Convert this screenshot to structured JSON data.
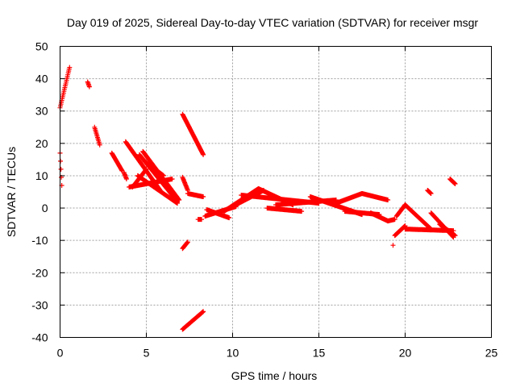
{
  "chart_data": {
    "type": "scatter",
    "title": "Day 019 of 2025, Sidereal Day-to-day VTEC variation (SDTVAR) for receiver msgr",
    "xlabel": "GPS time / hours",
    "ylabel": "SDTVAR / TECUs",
    "xlim": [
      0,
      25
    ],
    "ylim": [
      -40,
      50
    ],
    "xticks": [
      "0",
      "5",
      "10",
      "15",
      "20",
      "25"
    ],
    "yticks": [
      "-40",
      "-30",
      "-20",
      "-10",
      "0",
      "10",
      "20",
      "30",
      "40",
      "50"
    ],
    "grid": true,
    "marker": "+",
    "color": "#ff0000",
    "segments": [
      {
        "x0": 0.0,
        "x1": 0.55,
        "y0": 31,
        "y1": 43.5
      },
      {
        "x0": 0.0,
        "x1": 0.1,
        "y0": 17,
        "y1": 7
      },
      {
        "x0": 1.6,
        "x1": 1.7,
        "y0": 39,
        "y1": 37.5
      },
      {
        "x0": 2.0,
        "x1": 2.3,
        "y0": 25,
        "y1": 19.5
      },
      {
        "x0": 3.0,
        "x1": 3.6,
        "y0": 17,
        "y1": 11.5
      },
      {
        "x0": 3.7,
        "x1": 3.85,
        "y0": 11,
        "y1": 9
      },
      {
        "x0": 3.8,
        "x1": 5.8,
        "y0": 20.5,
        "y1": 5.5
      },
      {
        "x0": 4.0,
        "x1": 6.5,
        "y0": 6.5,
        "y1": 9
      },
      {
        "x0": 4.2,
        "x1": 5.0,
        "y0": 6.5,
        "y1": 12
      },
      {
        "x0": 4.5,
        "x1": 6.8,
        "y0": 10,
        "y1": 1.5
      },
      {
        "x0": 4.6,
        "x1": 6.8,
        "y0": 16.5,
        "y1": 2
      },
      {
        "x0": 4.8,
        "x1": 6.9,
        "y0": 17.5,
        "y1": 2.5
      },
      {
        "x0": 5.0,
        "x1": 6.0,
        "y0": 14,
        "y1": 10
      },
      {
        "x0": 7.1,
        "x1": 8.3,
        "y0": 29,
        "y1": 16.5
      },
      {
        "x0": 7.1,
        "x1": 7.4,
        "y0": 9.5,
        "y1": 5.5
      },
      {
        "x0": 7.4,
        "x1": 8.3,
        "y0": 4.5,
        "y1": 3.5
      },
      {
        "x0": 7.1,
        "x1": 7.4,
        "y0": -12.5,
        "y1": -10.5
      },
      {
        "x0": 7.1,
        "x1": 8.3,
        "y0": -37.5,
        "y1": -32
      },
      {
        "x0": 8.0,
        "x1": 8.2,
        "y0": -3.5,
        "y1": -3.5
      },
      {
        "x0": 8.4,
        "x1": 10.2,
        "y0": -2.5,
        "y1": 0.5
      },
      {
        "x0": 8.5,
        "x1": 9.8,
        "y0": -0.5,
        "y1": -3
      },
      {
        "x0": 9.5,
        "x1": 11.5,
        "y0": -1,
        "y1": 6
      },
      {
        "x0": 10.0,
        "x1": 11.8,
        "y0": 0.5,
        "y1": 5.5
      },
      {
        "x0": 10.5,
        "x1": 15.0,
        "y0": 4,
        "y1": 1.5
      },
      {
        "x0": 11.5,
        "x1": 13.5,
        "y0": 6,
        "y1": 1
      },
      {
        "x0": 12.0,
        "x1": 14.0,
        "y0": 0,
        "y1": -1
      },
      {
        "x0": 12.5,
        "x1": 16.0,
        "y0": 1,
        "y1": 2.5
      },
      {
        "x0": 14.5,
        "x1": 17.5,
        "y0": 3.5,
        "y1": -2
      },
      {
        "x0": 16.0,
        "x1": 17.5,
        "y0": 1.5,
        "y1": 4.5
      },
      {
        "x0": 17.5,
        "x1": 19.0,
        "y0": 4.5,
        "y1": 2.5
      },
      {
        "x0": 16.5,
        "x1": 18.5,
        "y0": -1,
        "y1": -2
      },
      {
        "x0": 18.0,
        "x1": 19.0,
        "y0": -1.5,
        "y1": -4
      },
      {
        "x0": 19.0,
        "x1": 19.4,
        "y0": -4,
        "y1": -3.5
      },
      {
        "x0": 19.3,
        "x1": 19.3,
        "y0": -11.5,
        "y1": -11.5
      },
      {
        "x0": 19.4,
        "x1": 20.0,
        "y0": -8.5,
        "y1": -5.5
      },
      {
        "x0": 19.5,
        "x1": 20.0,
        "y0": -2.5,
        "y1": 1
      },
      {
        "x0": 20.0,
        "x1": 21.5,
        "y0": 1,
        "y1": -6.5
      },
      {
        "x0": 20.0,
        "x1": 22.8,
        "y0": -6.5,
        "y1": -7
      },
      {
        "x0": 21.3,
        "x1": 21.5,
        "y0": 5.5,
        "y1": 4.5
      },
      {
        "x0": 21.5,
        "x1": 22.8,
        "y0": -1.5,
        "y1": -9
      },
      {
        "x0": 22.0,
        "x1": 22.9,
        "y0": -5,
        "y1": -8.5
      },
      {
        "x0": 22.6,
        "x1": 22.9,
        "y0": 9,
        "y1": 7.5
      }
    ]
  }
}
